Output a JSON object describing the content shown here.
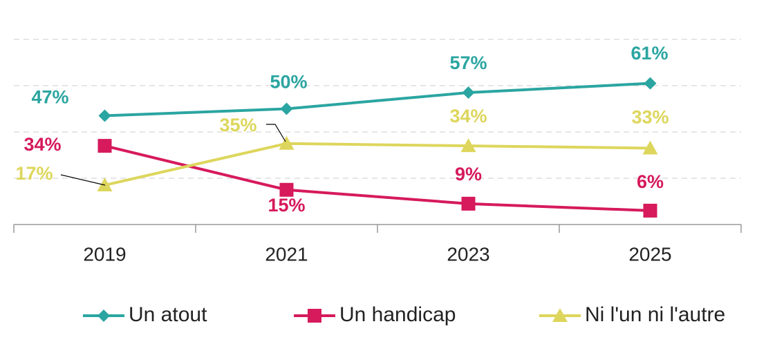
{
  "chart_data": {
    "type": "line",
    "categories": [
      "2019",
      "2021",
      "2023",
      "2025"
    ],
    "series": [
      {
        "name": "Un atout",
        "color": "#2ba5a1",
        "marker": "diamond",
        "values": [
          47,
          50,
          57,
          61
        ],
        "value_labels": [
          "47%",
          "50%",
          "57%",
          "61%"
        ]
      },
      {
        "name": "Un handicap",
        "color": "#d61a5c",
        "marker": "square",
        "values": [
          34,
          15,
          9,
          6
        ],
        "value_labels": [
          "34%",
          "15%",
          "9%",
          "6%"
        ]
      },
      {
        "name": "Ni l'un ni l'autre",
        "color": "#ddd65c",
        "marker": "triangle",
        "values": [
          17,
          35,
          34,
          33
        ],
        "value_labels": [
          "17%",
          "35%",
          "34%",
          "33%"
        ]
      }
    ],
    "ylim": [
      0,
      80
    ],
    "yticks": [
      0,
      20,
      40,
      60,
      80
    ],
    "grid": true,
    "legend": "bottom"
  }
}
